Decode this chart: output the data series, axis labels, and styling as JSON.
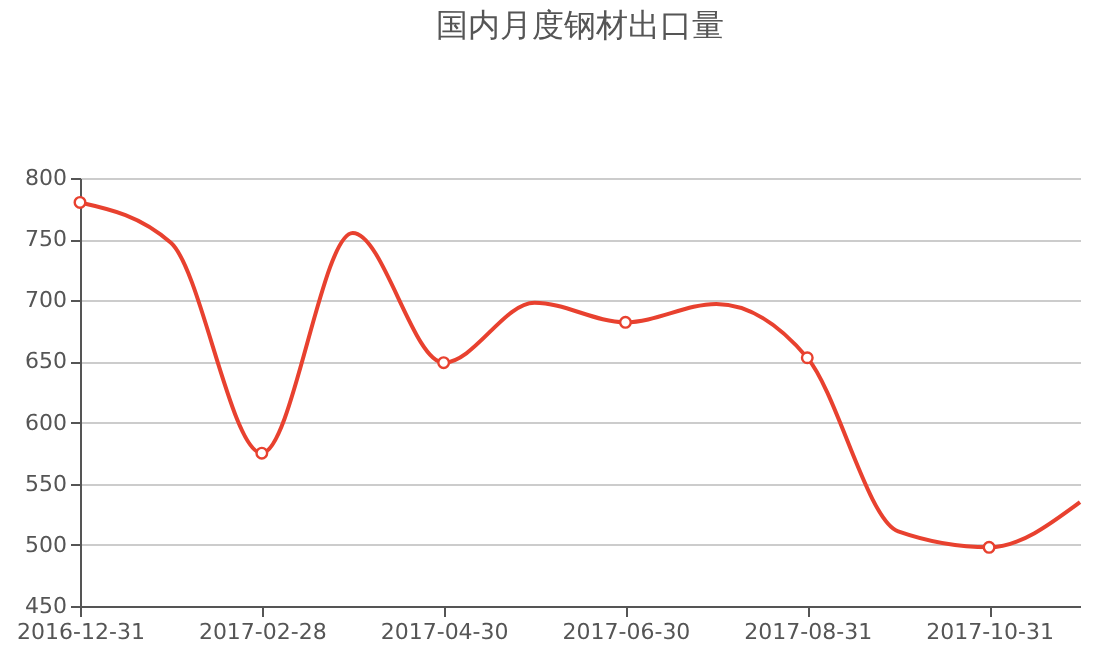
{
  "chart_data": {
    "type": "line",
    "title": "国内月度钢材出口量",
    "categories": [
      "2016-12-31",
      null,
      "2017-02-28",
      null,
      "2017-04-30",
      null,
      "2017-06-30",
      null,
      "2017-08-31",
      null,
      "2017-10-31",
      null
    ],
    "series": [
      {
        "color": "#e8412f",
        "values": [
          780,
          747,
          575,
          755,
          649,
          698,
          682,
          697,
          653,
          511,
          498,
          535
        ]
      }
    ],
    "ylim": [
      450,
      800
    ],
    "yticks": [
      450,
      500,
      550,
      600,
      650,
      700,
      750,
      800
    ],
    "grid": "y",
    "legend": false,
    "marker": "circle",
    "line_style": "solid"
  }
}
